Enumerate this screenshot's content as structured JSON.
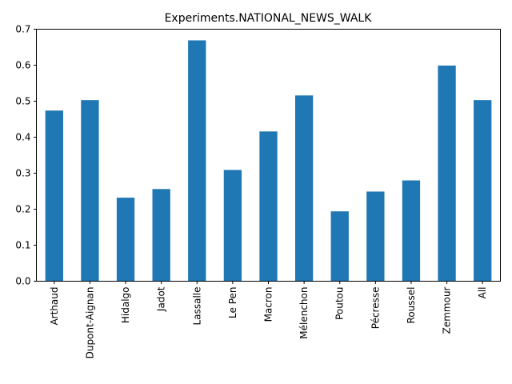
{
  "chart_data": {
    "type": "bar",
    "title": "Experiments.NATIONAL_NEWS_WALK",
    "xlabel": "",
    "ylabel": "",
    "categories": [
      "Arthaud",
      "Dupont-Aignan",
      "Hidalgo",
      "Jadot",
      "Lassalle",
      "Le Pen",
      "Macron",
      "Mélenchon",
      "Poutou",
      "Pécresse",
      "Roussel",
      "Zemmour",
      "All"
    ],
    "values": [
      0.474,
      0.503,
      0.232,
      0.256,
      0.669,
      0.309,
      0.416,
      0.516,
      0.194,
      0.249,
      0.28,
      0.599,
      0.503
    ],
    "ylim": [
      0,
      0.7
    ],
    "yticks": [
      0.0,
      0.1,
      0.2,
      0.3,
      0.4,
      0.5,
      0.6,
      0.7
    ],
    "ytick_labels": [
      "0.0",
      "0.1",
      "0.2",
      "0.3",
      "0.4",
      "0.5",
      "0.6",
      "0.7"
    ],
    "bar_color": "#1f77b4",
    "grid": false,
    "legend": "none"
  }
}
